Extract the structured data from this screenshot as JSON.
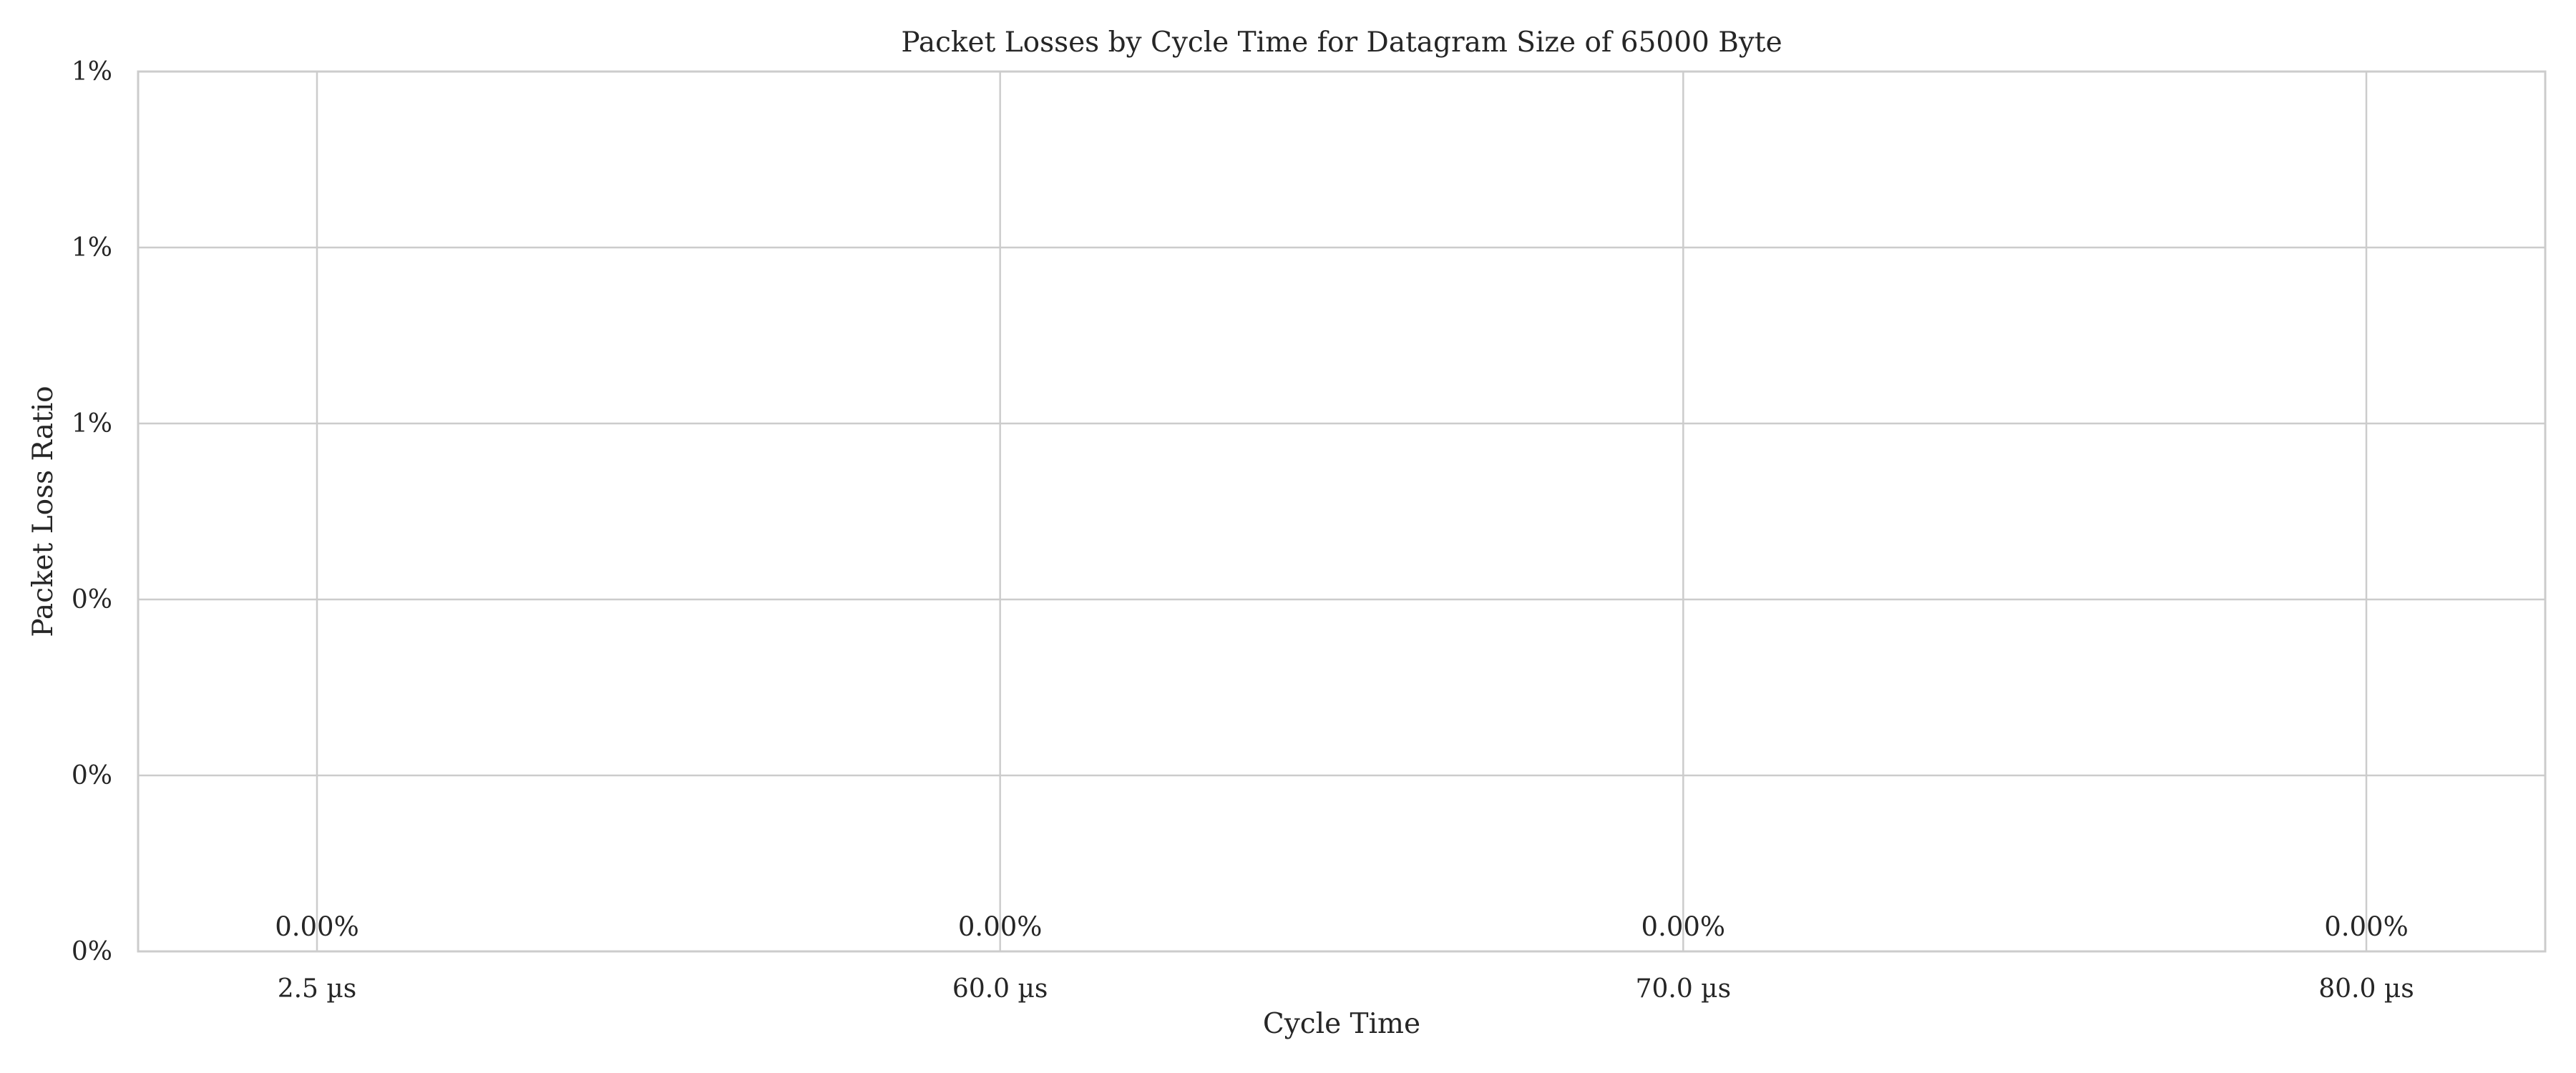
{
  "chart_data": {
    "type": "bar",
    "title": "Packet Losses by Cycle Time for Datagram Size of 65000 Byte",
    "xlabel": "Cycle Time",
    "ylabel": "Packet Loss Ratio",
    "categories": [
      "2.5 µs",
      "60.0 µs",
      "70.0 µs",
      "80.0 µs"
    ],
    "values": [
      0,
      0,
      0,
      0
    ],
    "data_labels": [
      "0.00%",
      "0.00%",
      "0.00%",
      "0.00%"
    ],
    "ylim": [
      0,
      0.01
    ],
    "yticks": [
      0,
      0.002,
      0.004,
      0.006,
      0.008,
      0.01
    ],
    "ytick_labels": [
      "0%",
      "0%",
      "0%",
      "1%",
      "1%",
      "1%"
    ],
    "grid": true,
    "colors": {
      "grid": "#cccccc",
      "bar": "#4c72b0",
      "text": "#262626"
    }
  }
}
